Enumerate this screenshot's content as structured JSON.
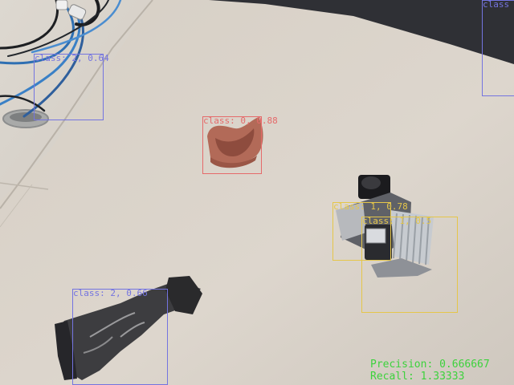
{
  "colors": {
    "class_0": "#e56a6a",
    "class_1": "#e5c64a",
    "class_2": "#7474e0",
    "metrics": "#3cd23c"
  },
  "detections": [
    {
      "text": "class: 2, 0.64",
      "cls": 2
    },
    {
      "text": "class: 0, 0.88",
      "cls": 0
    },
    {
      "text": "class: 1, 0.78",
      "cls": 1
    },
    {
      "text": "class: 1, 0.5",
      "cls": 1
    },
    {
      "text": "class: 2, 0.66",
      "cls": 2
    },
    {
      "text": "class",
      "cls": 2
    }
  ],
  "metrics": {
    "precision": "Precision: 0.666667",
    "recall": "Recall: 1.33333"
  }
}
